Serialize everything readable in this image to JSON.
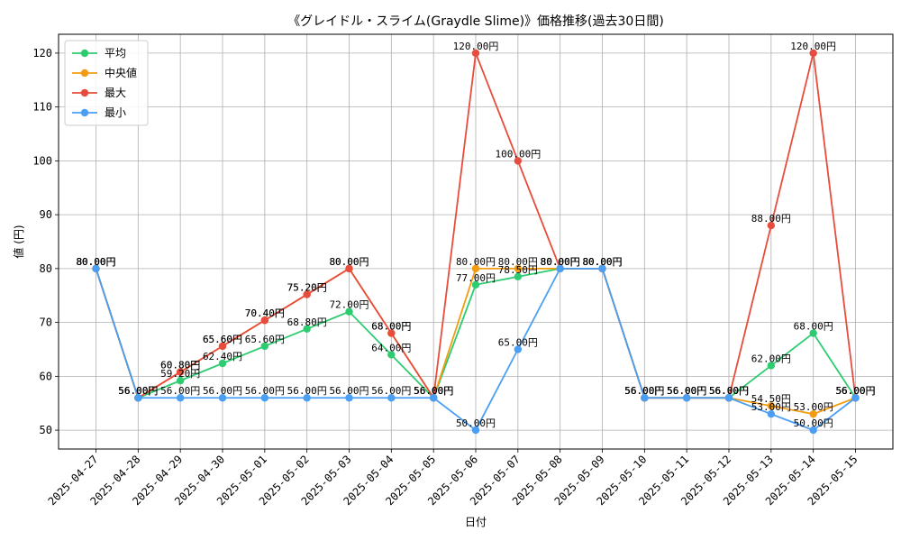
{
  "chart_data": {
    "type": "line",
    "title": "《グレイドル・スライム(Graydle Slime)》価格推移(過去30日間)",
    "xlabel": "日付",
    "ylabel": "値 (円)",
    "ylim": [
      46.5,
      123.5
    ],
    "yticks": [
      50,
      60,
      70,
      80,
      90,
      100,
      110,
      120
    ],
    "grid": true,
    "legend_position": "top-left",
    "label_suffix": "円",
    "categories": [
      "2025-04-27",
      "2025-04-28",
      "2025-04-29",
      "2025-04-30",
      "2025-05-01",
      "2025-05-02",
      "2025-05-03",
      "2025-05-04",
      "2025-05-05",
      "2025-05-06",
      "2025-05-07",
      "2025-05-08",
      "2025-05-09",
      "2025-05-10",
      "2025-05-11",
      "2025-05-12",
      "2025-05-13",
      "2025-05-14",
      "2025-05-15"
    ],
    "series": [
      {
        "name": "平均",
        "color": "#2ecc71",
        "values": [
          80,
          56,
          59.2,
          62.4,
          65.6,
          68.8,
          72,
          64,
          56,
          77,
          78.5,
          80,
          80,
          56,
          56,
          56,
          62,
          68,
          56
        ]
      },
      {
        "name": "中央値",
        "color": "#f39c12",
        "values": [
          80,
          56,
          60.8,
          65.6,
          70.4,
          75.2,
          80,
          68,
          56,
          80,
          80,
          80,
          80,
          56,
          56,
          56,
          54.5,
          53,
          56
        ]
      },
      {
        "name": "最大",
        "color": "#e74c3c",
        "values": [
          80,
          56,
          60.8,
          65.6,
          70.4,
          75.2,
          80,
          68,
          56,
          120,
          100,
          80,
          80,
          56,
          56,
          56,
          88,
          120,
          56
        ]
      },
      {
        "name": "最小",
        "color": "#4a9ff5",
        "values": [
          80,
          56,
          56,
          56,
          56,
          56,
          56,
          56,
          56,
          50,
          65,
          80,
          80,
          56,
          56,
          56,
          53,
          50,
          56
        ]
      }
    ]
  }
}
